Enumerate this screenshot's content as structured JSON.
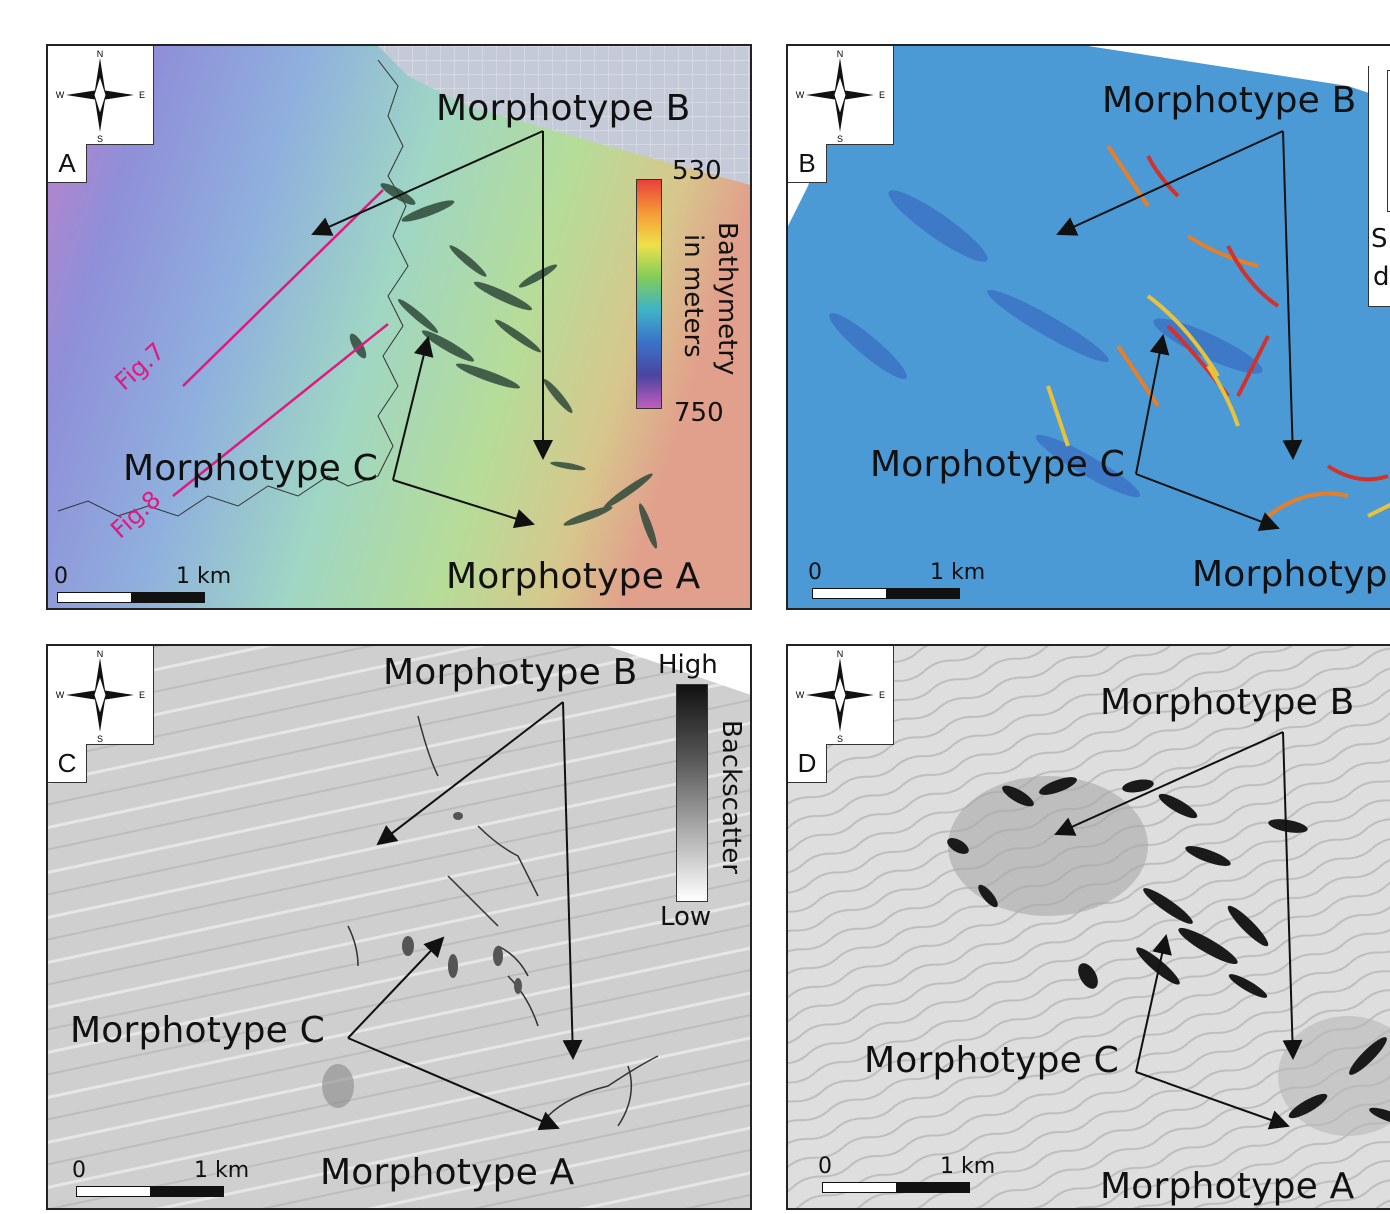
{
  "compass": {
    "n": "N",
    "s": "S",
    "e": "E",
    "w": "W"
  },
  "panels": {
    "a": {
      "letter": "A",
      "morphotype_b": "Morphotype B",
      "morphotype_c": "Morphotype C",
      "morphotype_a": "Morphotype A",
      "scale_zero": "0",
      "scale_km": "1 km",
      "fig7": "Fig.7",
      "fig8": "Fig.8",
      "legend_max": "530",
      "legend_min": "750",
      "legend_title_1": "Bathymetry",
      "legend_title_2": "in meters"
    },
    "b": {
      "letter": "B",
      "morphotype_b": "Morphotype B",
      "morphotype_c": "Morphotype C",
      "morphotype_a": "Morphotyp",
      "scale_zero": "0",
      "scale_km": "1 km",
      "legend_partial_1": "S",
      "legend_partial_2": "d"
    },
    "c": {
      "letter": "C",
      "morphotype_b": "Morphotype B",
      "morphotype_c": "Morphotype C",
      "morphotype_a": "Morphotype A",
      "scale_zero": "0",
      "scale_km": "1 km",
      "legend_high": "High",
      "legend_low": "Low",
      "legend_title": "Backscatter"
    },
    "d": {
      "letter": "D",
      "morphotype_b": "Morphotype B",
      "morphotype_c": "Morphotype C",
      "morphotype_a": "Morphotype A",
      "scale_zero": "0",
      "scale_km": "1 km"
    }
  },
  "colors": {
    "fig_line": "#e0197f",
    "arrow": "#111111"
  }
}
